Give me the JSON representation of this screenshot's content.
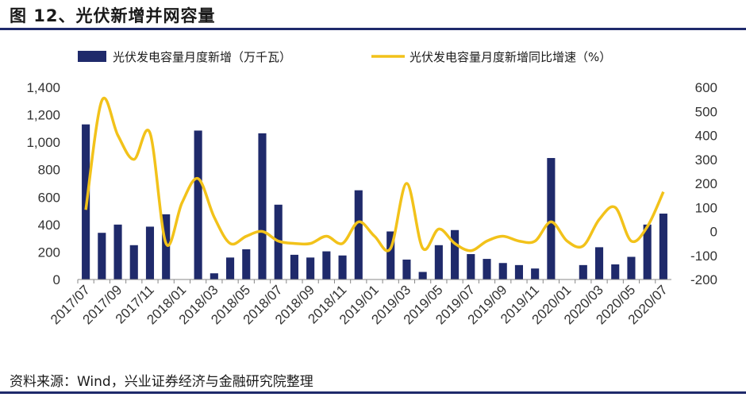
{
  "header": {
    "title": "图 12、光伏新增并网容量"
  },
  "footer": {
    "source": "资料来源：Wind，兴业证券经济与金融研究院整理"
  },
  "colors": {
    "bar": "#1f2a6b",
    "line": "#f2c21a",
    "rule": "#1f2a6b"
  },
  "chart_data": {
    "type": "bar",
    "categories": [
      "2017/07",
      "2017/08",
      "2017/09",
      "2017/10",
      "2017/11",
      "2017/12",
      "2018/01",
      "2018/02",
      "2018/03",
      "2018/04",
      "2018/05",
      "2018/06",
      "2018/07",
      "2018/08",
      "2018/09",
      "2018/10",
      "2018/11",
      "2018/12",
      "2019/01",
      "2019/02",
      "2019/03",
      "2019/04",
      "2019/05",
      "2019/06",
      "2019/07",
      "2019/08",
      "2019/09",
      "2019/10",
      "2019/11",
      "2019/12",
      "2020/01",
      "2020/02",
      "2020/03",
      "2020/04",
      "2020/05",
      "2020/06",
      "2020/07"
    ],
    "x_tick_labels": [
      "2017/07",
      "2017/09",
      "2017/11",
      "2018/01",
      "2018/03",
      "2018/05",
      "2018/07",
      "2018/09",
      "2018/11",
      "2019/01",
      "2019/03",
      "2019/05",
      "2019/07",
      "2019/09",
      "2019/11",
      "2020/01",
      "2020/03",
      "2020/05",
      "2020/07"
    ],
    "series": [
      {
        "name": "光伏发电容量月度新增（万千瓦）",
        "type": "bar",
        "axis": "left",
        "values": [
          1130,
          340,
          400,
          250,
          385,
          475,
          null,
          1085,
          45,
          160,
          220,
          1065,
          545,
          180,
          160,
          205,
          175,
          650,
          null,
          350,
          145,
          55,
          250,
          360,
          185,
          150,
          120,
          105,
          80,
          885,
          null,
          105,
          235,
          110,
          165,
          400,
          480
        ]
      },
      {
        "name": "光伏发电容量月度新增同比增速（%）",
        "type": "line",
        "axis": "right",
        "values": [
          90,
          545,
          400,
          300,
          410,
          -50,
          120,
          220,
          60,
          -50,
          -20,
          0,
          -40,
          -50,
          -50,
          -20,
          -50,
          40,
          -20,
          -70,
          200,
          -70,
          10,
          -50,
          -80,
          -40,
          -20,
          -40,
          -40,
          40,
          -40,
          -60,
          50,
          100,
          -40,
          20,
          165
        ]
      }
    ],
    "y_left": {
      "lim": [
        0,
        1400
      ],
      "ticks": [
        "0",
        "200",
        "400",
        "600",
        "800",
        "1,000",
        "1,200",
        "1,400"
      ]
    },
    "y_right": {
      "lim": [
        -200,
        600
      ],
      "ticks": [
        "-200",
        "-100",
        "0",
        "100",
        "200",
        "300",
        "400",
        "500",
        "600"
      ]
    },
    "legend": "top",
    "grid": false
  }
}
